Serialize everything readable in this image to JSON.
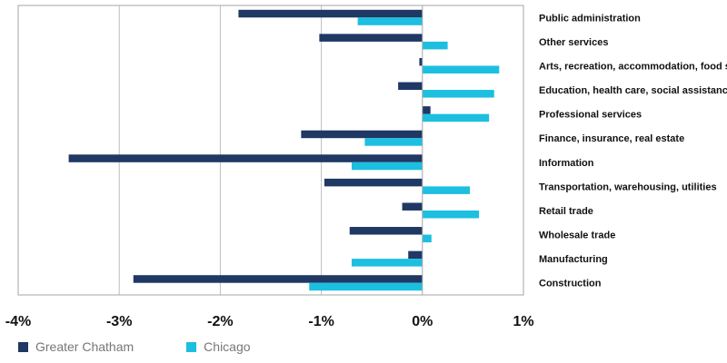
{
  "chart_data": {
    "type": "bar",
    "orientation": "horizontal",
    "categories": [
      "Public administration",
      "Other services",
      "Arts, recreation, accommodation, food service",
      "Education, health care, social assistance",
      "Professional services",
      "Finance, insurance, real estate",
      "Information",
      "Transportation, warehousing, utilities",
      "Retail trade",
      "Wholesale trade",
      "Manufacturing",
      "Construction"
    ],
    "series": [
      {
        "name": "Greater Chatham",
        "color": "#1f3864",
        "values": [
          -1.82,
          -1.02,
          -0.03,
          -0.24,
          0.08,
          -1.2,
          -3.5,
          -0.97,
          -0.2,
          -0.72,
          -0.14,
          -2.86
        ]
      },
      {
        "name": "Chicago",
        "color": "#1cbfe0",
        "values": [
          -0.64,
          0.25,
          0.76,
          0.71,
          0.66,
          -0.57,
          -0.7,
          0.47,
          0.56,
          0.09,
          -0.7,
          -1.12
        ]
      }
    ],
    "xlim": [
      -4,
      1
    ],
    "xticks": [
      -4,
      -3,
      -2,
      -1,
      0,
      1
    ],
    "xtick_labels": [
      "-4%",
      "-3%",
      "-2%",
      "-1%",
      "0%",
      "1%"
    ],
    "grid": true,
    "legend_position": "bottom-left",
    "title": "",
    "xlabel": "",
    "ylabel": ""
  }
}
